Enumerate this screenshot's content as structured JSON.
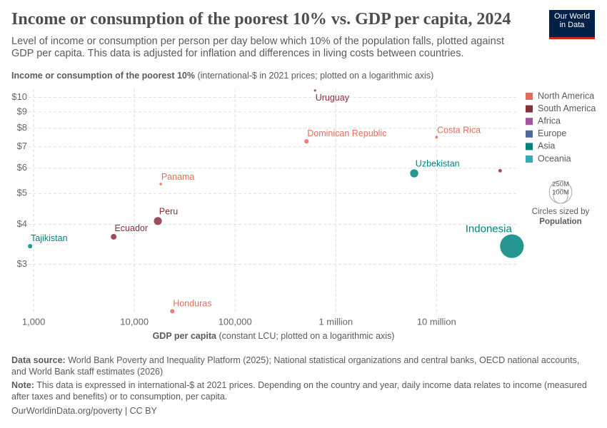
{
  "chart_data": {
    "type": "scatter",
    "title": "Income or consumption of the poorest 10% vs. GDP per capita, 2024",
    "subtitle": "Level of income or consumption per person per day below which 10% of the population falls, plotted against GDP per capita. This data is adjusted for inflation and differences in living costs between countries.",
    "logo": "Our World in Data",
    "y_axis_title": {
      "label": "Income or consumption of the poorest 10%",
      "unit": "(international-$ in 2021 prices; plotted on a logarithmic axis)"
    },
    "x_axis_title": {
      "label": "GDP per capita",
      "unit": "(constant LCU; plotted on a logarithmic axis)"
    },
    "x_scale": "log",
    "y_scale": "log",
    "grid": true,
    "legend": "right",
    "xlim": [
      890,
      64000000
    ],
    "ylim": [
      2.1,
      10.6
    ],
    "xticks": [
      {
        "value": 1000,
        "label": "1,000"
      },
      {
        "value": 10000,
        "label": "10,000"
      },
      {
        "value": 100000,
        "label": "100,000"
      },
      {
        "value": 1000000,
        "label": "1 million"
      },
      {
        "value": 10000000,
        "label": "10 million"
      }
    ],
    "yticks": [
      {
        "value": 3,
        "label": "$3"
      },
      {
        "value": 4,
        "label": "$4"
      },
      {
        "value": 5,
        "label": "$5"
      },
      {
        "value": 6,
        "label": "$6"
      },
      {
        "value": 7,
        "label": "$7"
      },
      {
        "value": 8,
        "label": "$8"
      },
      {
        "value": 9,
        "label": "$9"
      },
      {
        "value": 10,
        "label": "$10"
      }
    ],
    "series": [
      {
        "name": "North America",
        "color": "#e56e5a",
        "labels": [
          "Dominican Republic",
          "Costa Rica",
          "Panama",
          "Honduras"
        ],
        "x": [
          512000,
          10000000,
          18300,
          23800
        ],
        "values": [
          7.28,
          7.5,
          5.35,
          2.14
        ],
        "sizes": [
          11400000,
          5200000,
          4500000,
          10800000
        ]
      },
      {
        "name": "South America",
        "color": "#883039",
        "labels": [
          "Uruguay",
          null,
          "Peru",
          "Ecuador"
        ],
        "x": [
          622000,
          42800000,
          17100,
          6230
        ],
        "values": [
          10.5,
          5.89,
          4.1,
          3.66
        ],
        "sizes": [
          3400000,
          7000000,
          34000000,
          18000000
        ]
      },
      {
        "name": "Africa",
        "color": "#a2559c",
        "labels": [],
        "x": [],
        "values": [],
        "sizes": []
      },
      {
        "name": "Europe",
        "color": "#4c6a9c",
        "labels": [],
        "x": [],
        "values": [],
        "sizes": []
      },
      {
        "name": "Asia",
        "color": "#00847e",
        "labels": [
          "Uzbekistan",
          "Tajikistan",
          "Indonesia"
        ],
        "x": [
          6000000,
          922,
          56000000
        ],
        "values": [
          5.78,
          3.42,
          3.42
        ],
        "sizes": [
          36000000,
          10600000,
          283000000
        ]
      },
      {
        "name": "Oceania",
        "color": "#38aaba",
        "labels": [],
        "x": [],
        "values": [],
        "sizes": []
      }
    ],
    "size_legend": {
      "title": "Circles sized by",
      "variable": "Population",
      "values": [
        250000000,
        100000000
      ],
      "value_labels": [
        "250M",
        "100M"
      ]
    },
    "data_source": {
      "label": "Data source:",
      "text": "World Bank Poverty and Inequality Platform (2025); National statistical organizations and central banks, OECD national accounts, and World Bank staff estimates (2026)"
    },
    "note": {
      "label": "Note:",
      "text": "This data is expressed in international-$ at 2021 prices. Depending on the country and year, daily income data relates to income (measured after taxes and benefits) or to consumption, per capita."
    },
    "footer_url": "OurWorldinData.org/poverty | CC BY"
  }
}
